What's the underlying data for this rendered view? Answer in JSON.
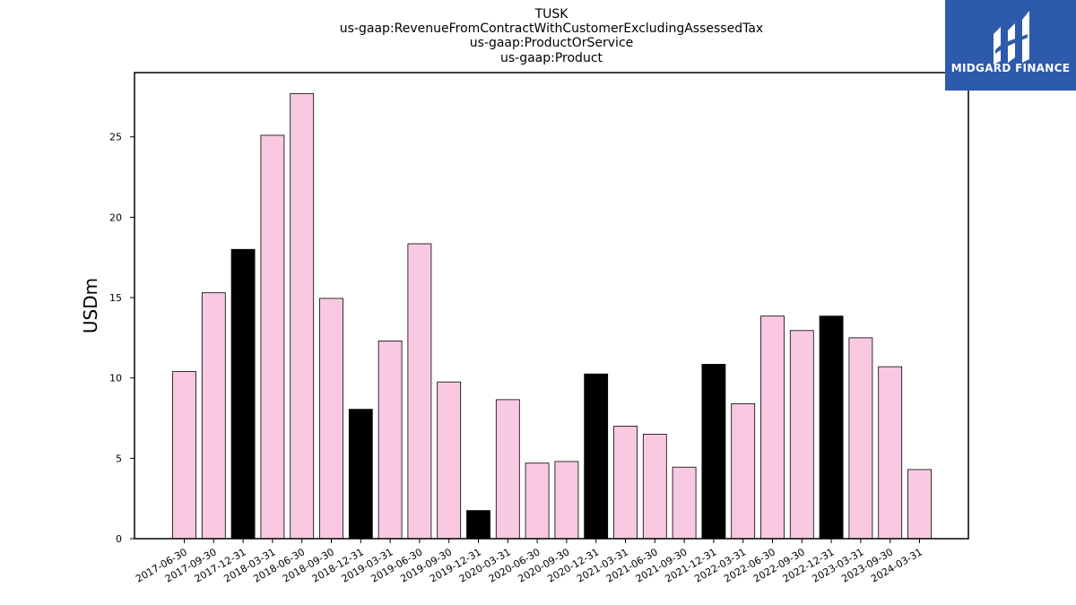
{
  "chart_data": {
    "type": "bar",
    "title_lines": [
      "TUSK",
      "us-gaap:RevenueFromContractWithCustomerExcludingAssessedTax",
      "us-gaap:ProductOrService",
      "us-gaap:Product"
    ],
    "xlabel": "",
    "ylabel": "USDm",
    "ylim": [
      0,
      29
    ],
    "yticks": [
      0,
      5,
      10,
      15,
      20,
      25
    ],
    "grid": false,
    "categories": [
      "2017-06-30",
      "2017-09-30",
      "2017-12-31",
      "2018-03-31",
      "2018-06-30",
      "2018-09-30",
      "2018-12-31",
      "2019-03-31",
      "2019-06-30",
      "2019-09-30",
      "2019-12-31",
      "2020-03-31",
      "2020-06-30",
      "2020-09-30",
      "2020-12-31",
      "2021-03-31",
      "2021-06-30",
      "2021-09-30",
      "2021-12-31",
      "2022-03-31",
      "2022-06-30",
      "2022-09-30",
      "2022-12-31",
      "2023-03-31",
      "2023-09-30",
      "2024-03-31"
    ],
    "values": [
      10.4,
      15.3,
      18.0,
      25.1,
      27.7,
      14.95,
      8.05,
      12.3,
      18.35,
      9.75,
      1.75,
      8.65,
      4.7,
      4.8,
      10.25,
      7.0,
      6.5,
      4.45,
      10.85,
      8.4,
      13.85,
      12.95,
      13.85,
      12.5,
      10.7,
      4.3
    ],
    "highlight": [
      false,
      false,
      true,
      false,
      false,
      false,
      true,
      false,
      false,
      false,
      true,
      false,
      false,
      false,
      true,
      false,
      false,
      false,
      true,
      false,
      false,
      false,
      true,
      false,
      false,
      false
    ],
    "colors": {
      "default": "#f9c8e1",
      "highlight": "#000000",
      "edge": "#000000"
    }
  },
  "logo": {
    "text": "MIDGARD FINANCE",
    "background": "#2e5aac",
    "icon": "midgard-logo-icon"
  }
}
